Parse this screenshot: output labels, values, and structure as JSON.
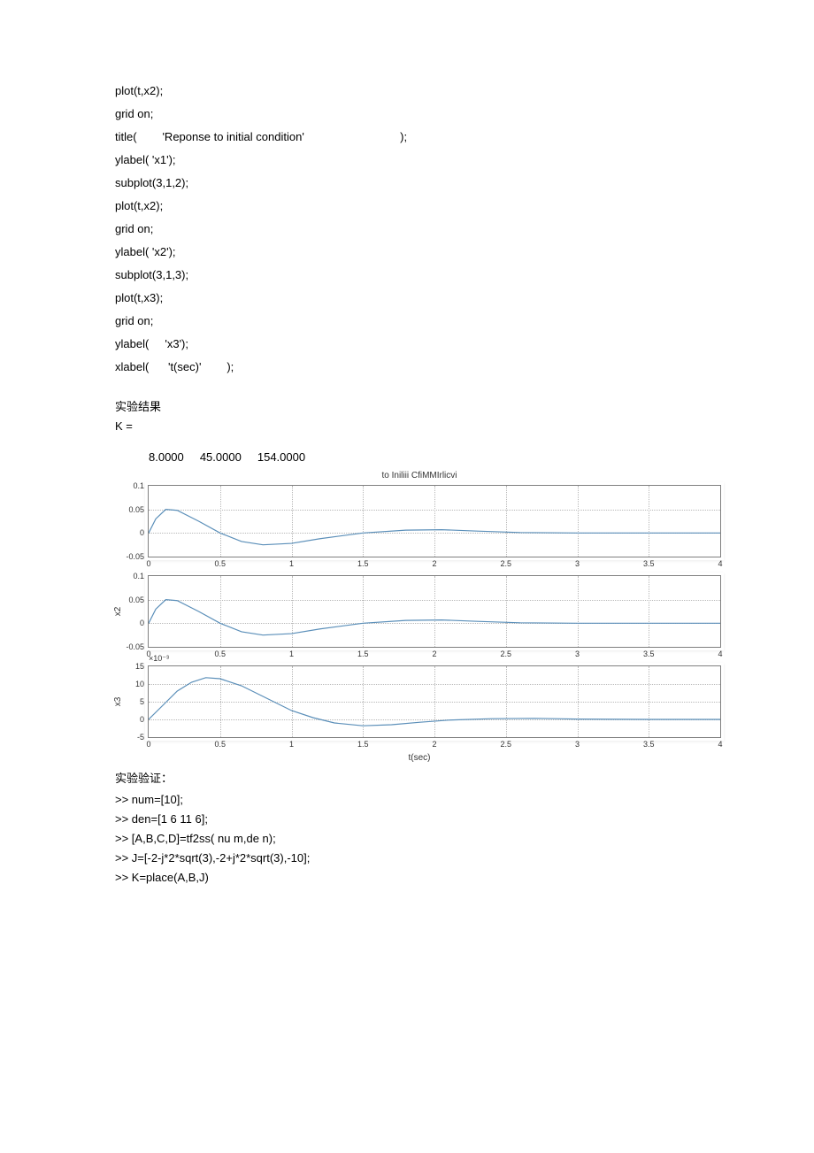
{
  "code_top": [
    "plot(t,x2);",
    "grid on;",
    "title(        'Reponse to initial condition'                              );",
    "ylabel( 'x1');",
    "subplot(3,1,2);",
    "plot(t,x2);",
    "grid on;",
    "ylabel( 'x2');",
    "subplot(3,1,3);",
    "plot(t,x3);",
    "grid on;",
    "ylabel(     'x3');",
    "xlabel(      't(sec)'        );"
  ],
  "result_label": "实验结果",
  "k_label": "K =",
  "k_values": "8.0000     45.0000     154.0000",
  "chart": {
    "title": "to Iniliii CfiMMIrlicvi",
    "xlabel": "t(sec)",
    "xlim": [
      0,
      4
    ],
    "xticks": [
      0,
      0.5,
      1,
      1.5,
      2,
      2.5,
      3,
      3.5,
      4
    ],
    "line_color": "#5b8fb9",
    "grid_color": "#b8b8b8",
    "border_color": "#808080",
    "bg_color": "#ffffff",
    "subplots": [
      {
        "ylabel": "",
        "ylim": [
          -0.05,
          0.1
        ],
        "yticks": [
          -0.05,
          0,
          0.05,
          0.1
        ],
        "ytick_labels": [
          "-0.05",
          "0",
          "0.05",
          "0.1"
        ],
        "exp": "",
        "data": [
          [
            0,
            0
          ],
          [
            0.05,
            0.03
          ],
          [
            0.12,
            0.05
          ],
          [
            0.2,
            0.048
          ],
          [
            0.35,
            0.025
          ],
          [
            0.5,
            0.0
          ],
          [
            0.65,
            -0.018
          ],
          [
            0.8,
            -0.025
          ],
          [
            1.0,
            -0.022
          ],
          [
            1.2,
            -0.012
          ],
          [
            1.5,
            0.0
          ],
          [
            1.8,
            0.006
          ],
          [
            2.05,
            0.007
          ],
          [
            2.3,
            0.004
          ],
          [
            2.6,
            0.001
          ],
          [
            3.0,
            0.0
          ],
          [
            3.5,
            0.0
          ],
          [
            4.0,
            0.0
          ]
        ]
      },
      {
        "ylabel": "x2",
        "ylim": [
          -0.05,
          0.1
        ],
        "yticks": [
          -0.05,
          0,
          0.05,
          0.1
        ],
        "ytick_labels": [
          "-0.05",
          "0",
          "0.05",
          "0.1"
        ],
        "exp": "",
        "data": [
          [
            0,
            0
          ],
          [
            0.05,
            0.03
          ],
          [
            0.12,
            0.05
          ],
          [
            0.2,
            0.048
          ],
          [
            0.35,
            0.025
          ],
          [
            0.5,
            0.0
          ],
          [
            0.65,
            -0.018
          ],
          [
            0.8,
            -0.025
          ],
          [
            1.0,
            -0.022
          ],
          [
            1.2,
            -0.012
          ],
          [
            1.5,
            0.0
          ],
          [
            1.8,
            0.006
          ],
          [
            2.05,
            0.007
          ],
          [
            2.3,
            0.004
          ],
          [
            2.6,
            0.001
          ],
          [
            3.0,
            0.0
          ],
          [
            3.5,
            0.0
          ],
          [
            4.0,
            0.0
          ]
        ]
      },
      {
        "ylabel": "x3",
        "ylim": [
          -5,
          15
        ],
        "yticks": [
          -5,
          0,
          5,
          10,
          15
        ],
        "ytick_labels": [
          "-5",
          "0",
          "5",
          "10",
          "15"
        ],
        "exp": "×10⁻³",
        "data": [
          [
            0,
            0
          ],
          [
            0.1,
            4
          ],
          [
            0.2,
            8
          ],
          [
            0.3,
            10.5
          ],
          [
            0.4,
            11.8
          ],
          [
            0.5,
            11.5
          ],
          [
            0.65,
            9.5
          ],
          [
            0.8,
            6.5
          ],
          [
            1.0,
            2.5
          ],
          [
            1.15,
            0.5
          ],
          [
            1.3,
            -1
          ],
          [
            1.5,
            -1.8
          ],
          [
            1.7,
            -1.5
          ],
          [
            1.9,
            -0.8
          ],
          [
            2.1,
            -0.2
          ],
          [
            2.4,
            0.2
          ],
          [
            2.7,
            0.3
          ],
          [
            3.0,
            0.1
          ],
          [
            3.5,
            0.0
          ],
          [
            4.0,
            0.0
          ]
        ]
      }
    ]
  },
  "verify_label": "实验验证：",
  "code_bottom": [
    ">> num=[10];",
    ">> den=[1 6 11 6];",
    ">> [A,B,C,D]=tf2ss( nu m,de n);",
    ">> J=[-2-j*2*sqrt(3),-2+j*2*sqrt(3),-10];",
    ">> K=place(A,B,J)"
  ]
}
